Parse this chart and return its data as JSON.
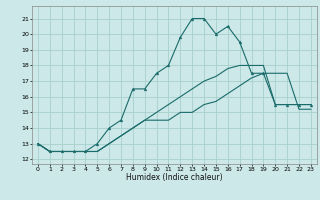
{
  "xlabel": "Humidex (Indice chaleur)",
  "bg_color": "#cce8e8",
  "grid_color": "#a8d0cc",
  "line_color": "#1a6b6b",
  "xlim": [
    -0.5,
    23.5
  ],
  "ylim": [
    11.7,
    21.8
  ],
  "yticks": [
    12,
    13,
    14,
    15,
    16,
    17,
    18,
    19,
    20,
    21
  ],
  "xticks": [
    0,
    1,
    2,
    3,
    4,
    5,
    6,
    7,
    8,
    9,
    10,
    11,
    12,
    13,
    14,
    15,
    16,
    17,
    18,
    19,
    20,
    21,
    22,
    23
  ],
  "s1_x": [
    0,
    1,
    2,
    3,
    4,
    5,
    6,
    7,
    8,
    9,
    10,
    11,
    12,
    13,
    14,
    15,
    16,
    17,
    18,
    19,
    20,
    21,
    22,
    23
  ],
  "s1_y": [
    13.0,
    12.5,
    12.5,
    12.5,
    12.5,
    12.5,
    13.0,
    13.5,
    14.0,
    14.5,
    14.5,
    14.5,
    15.0,
    15.0,
    15.5,
    15.7,
    16.2,
    16.7,
    17.2,
    17.5,
    17.5,
    17.5,
    15.2,
    15.2
  ],
  "s2_x": [
    0,
    1,
    2,
    3,
    4,
    5,
    6,
    7,
    8,
    9,
    10,
    11,
    12,
    13,
    14,
    15,
    16,
    17,
    18,
    19,
    20,
    21,
    22,
    23
  ],
  "s2_y": [
    13.0,
    12.5,
    12.5,
    12.5,
    12.5,
    12.5,
    13.0,
    13.5,
    14.0,
    14.5,
    15.0,
    15.5,
    16.0,
    16.5,
    17.0,
    17.3,
    17.8,
    18.0,
    18.0,
    18.0,
    15.5,
    15.5,
    15.5,
    15.5
  ],
  "s3_x": [
    0,
    1,
    2,
    3,
    4,
    5,
    6,
    7,
    8,
    9,
    10,
    11,
    12,
    13,
    14,
    15,
    16,
    17,
    18,
    19,
    20,
    21,
    22,
    23
  ],
  "s3_y": [
    13.0,
    12.5,
    12.5,
    12.5,
    12.5,
    13.0,
    14.0,
    14.5,
    16.5,
    16.5,
    17.5,
    18.0,
    19.8,
    21.0,
    21.0,
    20.0,
    20.5,
    19.5,
    17.5,
    17.5,
    15.5,
    15.5,
    15.5,
    15.5
  ]
}
